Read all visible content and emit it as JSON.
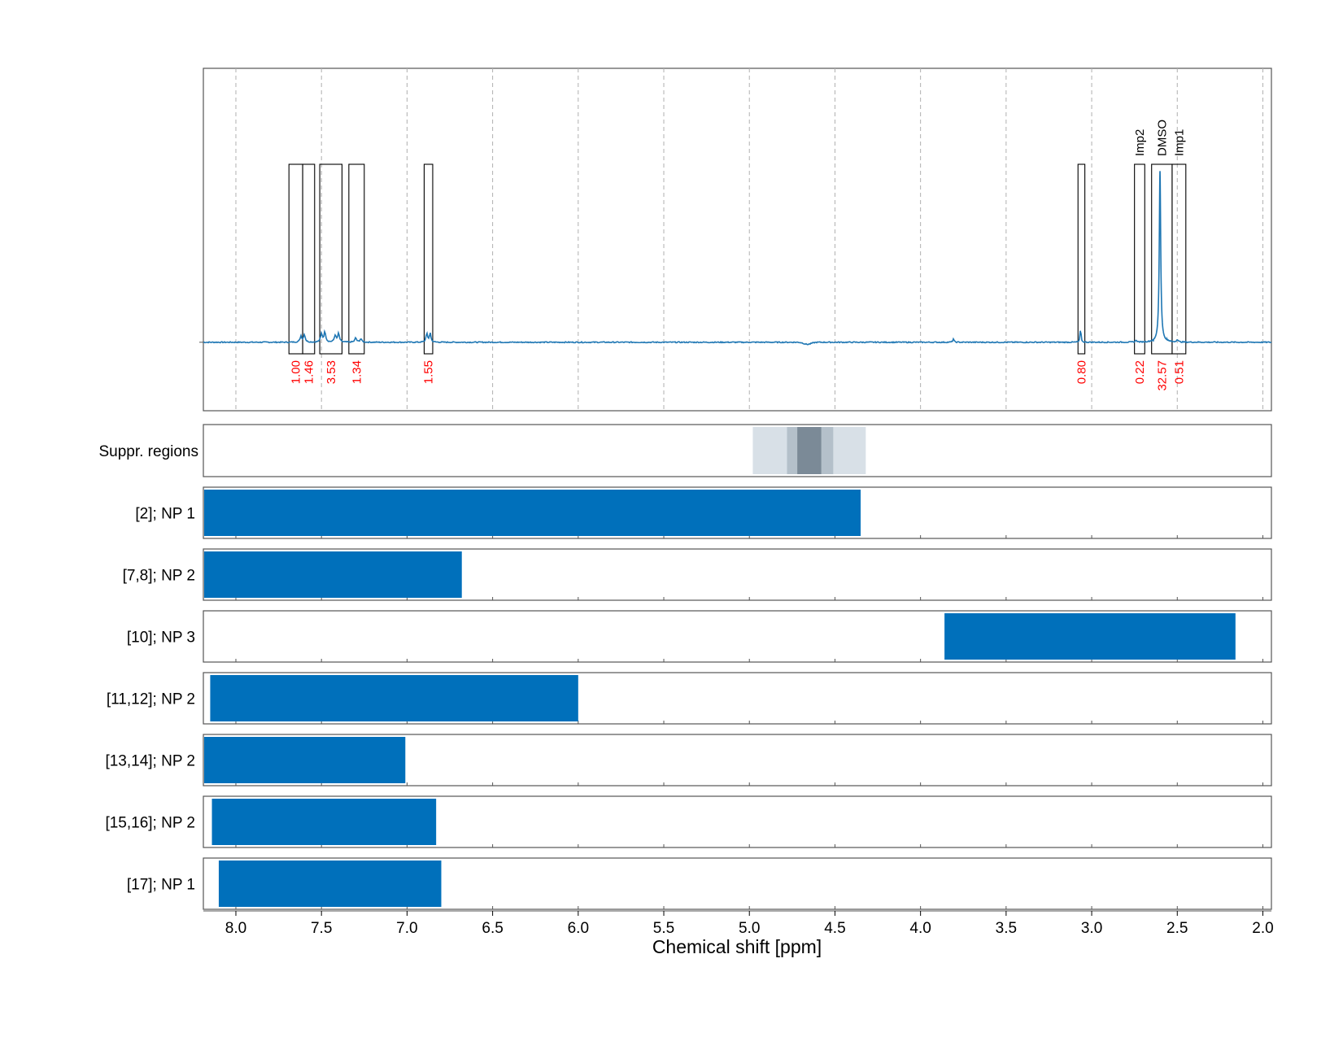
{
  "colors": {
    "spectrum": "#1f77b4",
    "bar": "#0070bb",
    "integral_text": "#ff0000",
    "grid": "#b0b0b0",
    "frame": "#555555",
    "suppr_light": "#d8e0e7",
    "suppr_mid": "#b4c0ca",
    "suppr_dark": "#7b8a97"
  },
  "chart_data": {
    "type": "nmr-spectrum-with-range-bars",
    "x_axis": {
      "label": "Chemical shift [ppm]",
      "range": [
        8.19,
        1.95
      ],
      "reversed": true,
      "ticks": [
        "8.0",
        "7.5",
        "7.0",
        "6.5",
        "6.0",
        "5.5",
        "5.0",
        "4.5",
        "4.0",
        "3.5",
        "3.0",
        "2.5",
        "2.0"
      ]
    },
    "grid": true,
    "spectrum": {
      "y_range": [
        -0.4,
        1.6
      ],
      "baseline": 0,
      "peaks": [
        {
          "ppm": 7.62,
          "height": 0.035,
          "width": 0.006
        },
        {
          "ppm": 7.6,
          "height": 0.045,
          "width": 0.006
        },
        {
          "ppm": 7.5,
          "height": 0.05,
          "width": 0.006
        },
        {
          "ppm": 7.48,
          "height": 0.06,
          "width": 0.006
        },
        {
          "ppm": 7.42,
          "height": 0.04,
          "width": 0.006
        },
        {
          "ppm": 7.4,
          "height": 0.05,
          "width": 0.006
        },
        {
          "ppm": 7.3,
          "height": 0.025,
          "width": 0.006
        },
        {
          "ppm": 7.27,
          "height": 0.02,
          "width": 0.006
        },
        {
          "ppm": 6.885,
          "height": 0.055,
          "width": 0.005
        },
        {
          "ppm": 6.865,
          "height": 0.055,
          "width": 0.005
        },
        {
          "ppm": 3.808,
          "height": 0.02,
          "width": 0.004
        },
        {
          "ppm": 3.065,
          "height": 0.09,
          "width": 0.003
        },
        {
          "ppm": 2.74,
          "height": 0.012,
          "width": 0.005
        },
        {
          "ppm": 2.601,
          "height": 1.0,
          "width": 0.005
        },
        {
          "ppm": 2.5,
          "height": 0.015,
          "width": 0.005
        }
      ],
      "dips": [
        {
          "ppm": 4.66,
          "depth": 0.012,
          "width": 0.03
        }
      ]
    },
    "integration_regions": [
      {
        "from": 7.69,
        "to": 7.61,
        "value": "1.00"
      },
      {
        "from": 7.61,
        "to": 7.54,
        "value": "1.46"
      },
      {
        "from": 7.51,
        "to": 7.38,
        "value": "3.53"
      },
      {
        "from": 7.34,
        "to": 7.25,
        "value": "1.34"
      },
      {
        "from": 6.9,
        "to": 6.85,
        "value": "1.55"
      },
      {
        "from": 3.08,
        "to": 3.04,
        "value": "0.80"
      },
      {
        "from": 2.75,
        "to": 2.69,
        "value": "0.22",
        "name": "Imp2"
      },
      {
        "from": 2.65,
        "to": 2.53,
        "value": "32.57",
        "name": "DMSO"
      },
      {
        "from": 2.53,
        "to": 2.45,
        "value": "0.51",
        "name": "Imp1"
      }
    ],
    "suppression_regions": {
      "label": "Suppr. regions",
      "bands": [
        {
          "from": 4.98,
          "to": 4.32,
          "level": "light"
        },
        {
          "from": 4.78,
          "to": 4.51,
          "level": "mid"
        },
        {
          "from": 4.72,
          "to": 4.58,
          "level": "dark"
        }
      ]
    },
    "series": [
      {
        "name": "[2]; NP 1",
        "from": 8.19,
        "to": 4.35
      },
      {
        "name": "[7,8]; NP 2",
        "from": 8.19,
        "to": 6.68
      },
      {
        "name": "[10]; NP 3",
        "from": 3.86,
        "to": 2.16
      },
      {
        "name": "[11,12]; NP 2",
        "from": 8.15,
        "to": 6.0
      },
      {
        "name": "[13,14]; NP 2",
        "from": 8.19,
        "to": 7.01
      },
      {
        "name": "[15,16]; NP 2",
        "from": 8.14,
        "to": 6.83
      },
      {
        "name": "[17]; NP 1",
        "from": 8.1,
        "to": 6.8
      }
    ]
  }
}
